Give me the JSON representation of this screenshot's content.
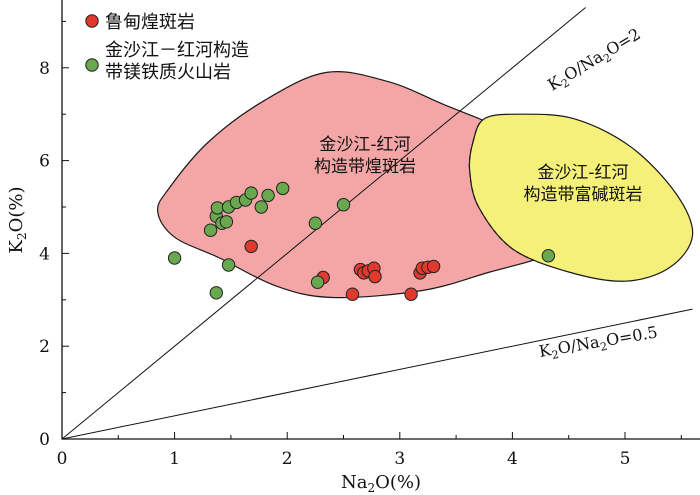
{
  "chart_data": {
    "type": "scatter",
    "xlabel": {
      "base": "Na",
      "sub": "2",
      "rest": "O(%)"
    },
    "ylabel": {
      "base": "K",
      "sub": "2",
      "rest": "O(%)"
    },
    "xlim": [
      0,
      5.6
    ],
    "ylim": [
      0,
      9.3
    ],
    "x_ticks": [
      "0",
      "1",
      "2",
      "3",
      "4",
      "5"
    ],
    "y_ticks": [
      "0",
      "2",
      "4",
      "6",
      "8"
    ],
    "grid": false,
    "legend_position": "top-left",
    "series": [
      {
        "name": "鲁甸煌斑岩",
        "color": "#e03a2f",
        "points": [
          [
            1.68,
            4.15
          ],
          [
            2.32,
            3.48
          ],
          [
            2.58,
            3.12
          ],
          [
            2.65,
            3.65
          ],
          [
            2.68,
            3.58
          ],
          [
            2.72,
            3.62
          ],
          [
            2.77,
            3.68
          ],
          [
            2.78,
            3.5
          ],
          [
            3.1,
            3.12
          ],
          [
            3.18,
            3.58
          ],
          [
            3.2,
            3.68
          ],
          [
            3.25,
            3.7
          ],
          [
            3.3,
            3.72
          ]
        ]
      },
      {
        "name_lines": [
          "金沙江－红河构造",
          "带镁铁质火山岩"
        ],
        "color": "#6aa84f",
        "points": [
          [
            1.0,
            3.9
          ],
          [
            1.32,
            4.5
          ],
          [
            1.37,
            4.8
          ],
          [
            1.38,
            4.98
          ],
          [
            1.42,
            4.65
          ],
          [
            1.46,
            4.68
          ],
          [
            1.48,
            5.0
          ],
          [
            1.55,
            5.1
          ],
          [
            1.63,
            5.15
          ],
          [
            1.68,
            5.3
          ],
          [
            1.77,
            5.0
          ],
          [
            1.83,
            5.25
          ],
          [
            1.96,
            5.4
          ],
          [
            1.48,
            3.75
          ],
          [
            1.37,
            3.15
          ],
          [
            2.25,
            4.65
          ],
          [
            2.27,
            3.38
          ],
          [
            2.5,
            5.05
          ],
          [
            4.32,
            3.95
          ]
        ]
      }
    ],
    "reference_lines": [
      {
        "label": {
          "a": "K",
          "a_sub": "2",
          "b": "O/Na",
          "b_sub": "2",
          "c": "O=2"
        },
        "slope": 2
      },
      {
        "label": {
          "a": "K",
          "a_sub": "2",
          "b": "O/Na",
          "b_sub": "2",
          "c": "O=0.5"
        },
        "slope": 0.5
      }
    ],
    "fields": [
      {
        "label_lines": [
          "金沙江-红河",
          "构造带煌斑岩"
        ],
        "fill": "#f4a6a6",
        "outline": [
          [
            0.85,
            4.9
          ],
          [
            0.95,
            5.4
          ],
          [
            1.3,
            6.4
          ],
          [
            1.8,
            7.3
          ],
          [
            2.35,
            7.9
          ],
          [
            2.9,
            7.7
          ],
          [
            3.4,
            7.2
          ],
          [
            3.9,
            6.7
          ],
          [
            4.25,
            6.2
          ],
          [
            4.5,
            5.6
          ],
          [
            4.58,
            5.0
          ],
          [
            4.55,
            4.4
          ],
          [
            4.3,
            3.95
          ],
          [
            3.8,
            3.6
          ],
          [
            3.2,
            3.2
          ],
          [
            2.4,
            3.05
          ],
          [
            1.9,
            3.3
          ],
          [
            1.4,
            3.9
          ],
          [
            1.0,
            4.35
          ]
        ]
      },
      {
        "label_lines": [
          "金沙江-红河",
          "构造带富碱斑岩"
        ],
        "fill": "#f5f07a",
        "outline": [
          [
            3.65,
            6.4
          ],
          [
            3.75,
            6.9
          ],
          [
            4.05,
            7.0
          ],
          [
            4.55,
            6.9
          ],
          [
            5.05,
            6.3
          ],
          [
            5.45,
            5.3
          ],
          [
            5.6,
            4.4
          ],
          [
            5.4,
            3.7
          ],
          [
            5.0,
            3.4
          ],
          [
            4.5,
            3.6
          ],
          [
            4.0,
            4.1
          ],
          [
            3.7,
            5.0
          ],
          [
            3.62,
            5.8
          ]
        ]
      }
    ]
  }
}
